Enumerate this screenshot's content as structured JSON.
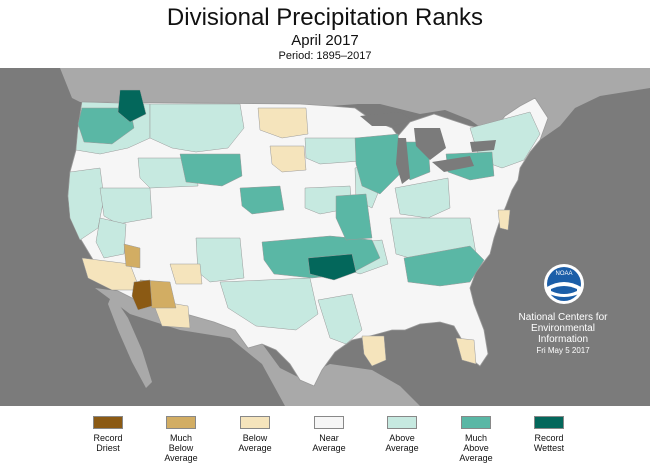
{
  "header": {
    "title": "Divisional Precipitation Ranks",
    "subtitle": "April 2017",
    "period": "Period: 1895–2017"
  },
  "credit": {
    "line1": "National Centers for",
    "line2": "Environmental",
    "line3": "Information",
    "date": "Fri May  5 2017",
    "logo_text": "NOAA",
    "logo_icon": "noaa-logo"
  },
  "colors": {
    "background": "#7b7b7b",
    "land_outside": "#a9a9a9",
    "water": "#7b7b7b",
    "record_driest": "#8b5a14",
    "much_below": "#d2ad63",
    "below": "#f5e4bc",
    "near": "#f6f6f6",
    "above": "#c6e9e0",
    "much_above": "#5ab7a5",
    "record_wettest": "#03675b"
  },
  "legend": [
    {
      "label": "Record\nDriest",
      "color": "#8b5a14"
    },
    {
      "label": "Much\nBelow\nAverage",
      "color": "#d2ad63"
    },
    {
      "label": "Below\nAverage",
      "color": "#f5e4bc"
    },
    {
      "label": "Near\nAverage",
      "color": "#f6f6f6"
    },
    {
      "label": "Above\nAverage",
      "color": "#c6e9e0"
    },
    {
      "label": "Much\nAbove\nAverage",
      "color": "#5ab7a5"
    },
    {
      "label": "Record\nWettest",
      "color": "#03675b"
    }
  ]
}
